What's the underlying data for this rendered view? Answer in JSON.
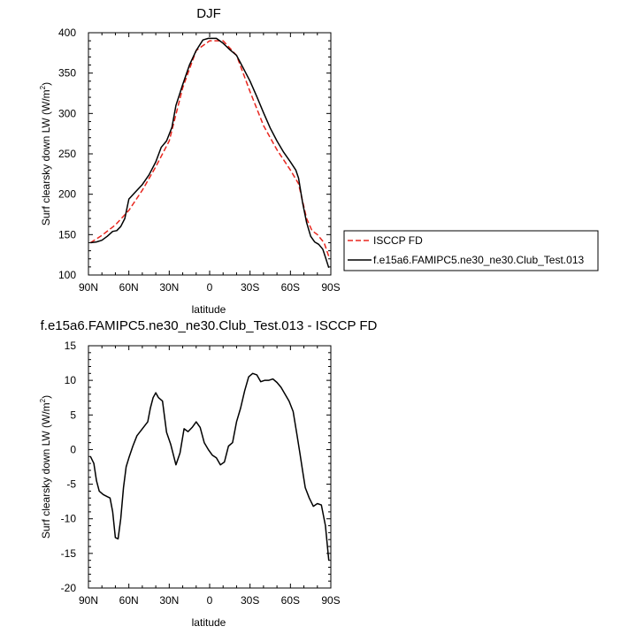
{
  "chart_data": [
    {
      "type": "line",
      "title": "DJF",
      "xlabel": "latitude",
      "ylabel": "Surf clearsky down LW (W/m",
      "ylabel_sup": "2",
      "ylabel_end": ")",
      "xlim": [
        90,
        -90
      ],
      "ylim": [
        100,
        400
      ],
      "xticks": [
        {
          "v": 90,
          "l": "90N"
        },
        {
          "v": 60,
          "l": "60N"
        },
        {
          "v": 30,
          "l": "30N"
        },
        {
          "v": 0,
          "l": "0"
        },
        {
          "v": -30,
          "l": "30S"
        },
        {
          "v": -60,
          "l": "60S"
        },
        {
          "v": -90,
          "l": "90S"
        }
      ],
      "yticks": [
        100,
        150,
        200,
        250,
        300,
        350,
        400
      ],
      "legend": "outside-right",
      "series": [
        {
          "name": "ISCCP FD",
          "color": "#e8261e",
          "dash": true,
          "x": [
            88.5,
            80,
            70,
            60,
            50,
            40,
            30,
            20,
            10,
            0,
            -10,
            -20,
            -30,
            -40,
            -50,
            -60,
            -66,
            -72,
            -76,
            -80,
            -85,
            -88.5
          ],
          "y": [
            140,
            149,
            162,
            180,
            205,
            234,
            266,
            332,
            378,
            390,
            390,
            372,
            327,
            285,
            255,
            230,
            213,
            170,
            155,
            150,
            140,
            123
          ]
        },
        {
          "name": "f.e15a6.FAMIPC5.ne30_ne30.Club_Test.013",
          "color": "#000000",
          "dash": false,
          "x": [
            88.5,
            84,
            80,
            76,
            72,
            69,
            66,
            63,
            60,
            55,
            50,
            45,
            40,
            36,
            32,
            28,
            25,
            20,
            15,
            10,
            5,
            1,
            -5,
            -10,
            -15,
            -20,
            -25,
            -30,
            -35,
            -40,
            -45,
            -50,
            -55,
            -60,
            -64,
            -66,
            -69,
            -72,
            -75,
            -78,
            -81,
            -84,
            -86,
            -88.5
          ],
          "y": [
            140,
            141,
            143,
            148,
            154,
            155,
            160,
            170,
            194,
            203,
            212,
            224,
            240,
            258,
            266,
            283,
            310,
            336,
            360,
            378,
            391,
            393,
            393,
            387,
            379,
            372,
            356,
            340,
            321,
            301,
            282,
            266,
            252,
            240,
            230,
            220,
            190,
            165,
            148,
            141,
            138,
            132,
            122,
            109
          ]
        }
      ]
    },
    {
      "type": "line",
      "title": "f.e15a6.FAMIPC5.ne30_ne30.Club_Test.013 - ISCCP FD",
      "xlabel": "latitude",
      "ylabel": "Surf clearsky down LW (W/m",
      "ylabel_sup": "2",
      "ylabel_end": ")",
      "xlim": [
        90,
        -90
      ],
      "ylim": [
        -20,
        15
      ],
      "xticks": [
        {
          "v": 90,
          "l": "90N"
        },
        {
          "v": 60,
          "l": "60N"
        },
        {
          "v": 30,
          "l": "30N"
        },
        {
          "v": 0,
          "l": "0"
        },
        {
          "v": -30,
          "l": "30S"
        },
        {
          "v": -60,
          "l": "60S"
        },
        {
          "v": -90,
          "l": "90S"
        }
      ],
      "yticks": [
        -20,
        -15,
        -10,
        -5,
        0,
        5,
        10,
        15
      ],
      "series": [
        {
          "color": "#000000",
          "x": [
            88.5,
            86,
            84,
            82,
            79,
            76,
            74,
            72,
            70,
            68,
            66,
            64,
            62,
            60,
            57,
            54,
            50,
            46,
            44,
            42,
            40,
            38,
            35,
            32,
            29,
            25,
            22,
            19,
            16,
            13,
            10,
            7,
            4,
            1,
            -2,
            -5,
            -8,
            -11,
            -14,
            -17,
            -20,
            -23,
            -26,
            -29,
            -32,
            -35,
            -38,
            -41,
            -44,
            -47,
            -50,
            -53,
            -56,
            -59,
            -62,
            -65,
            -67,
            -69,
            -71,
            -74,
            -77,
            -80,
            -83,
            -86,
            -88.5
          ],
          "y": [
            -1,
            -2,
            -4.5,
            -6,
            -6.5,
            -6.8,
            -7,
            -9,
            -12.7,
            -12.9,
            -10,
            -5.5,
            -2.5,
            -1.2,
            0.5,
            2,
            3,
            4,
            6,
            7.5,
            8.2,
            7.5,
            7,
            2.5,
            0.8,
            -2.2,
            -0.5,
            3,
            2.6,
            3.2,
            4,
            3.2,
            1,
            0,
            -0.8,
            -1.2,
            -2.2,
            -1.8,
            0.5,
            1,
            4,
            6,
            8.5,
            10.5,
            11,
            10.8,
            9.8,
            10,
            10,
            10.2,
            9.7,
            9,
            8,
            7,
            5.5,
            2,
            -0.5,
            -3,
            -5.5,
            -7,
            -8.2,
            -7.8,
            -8,
            -11,
            -16
          ]
        }
      ]
    }
  ]
}
